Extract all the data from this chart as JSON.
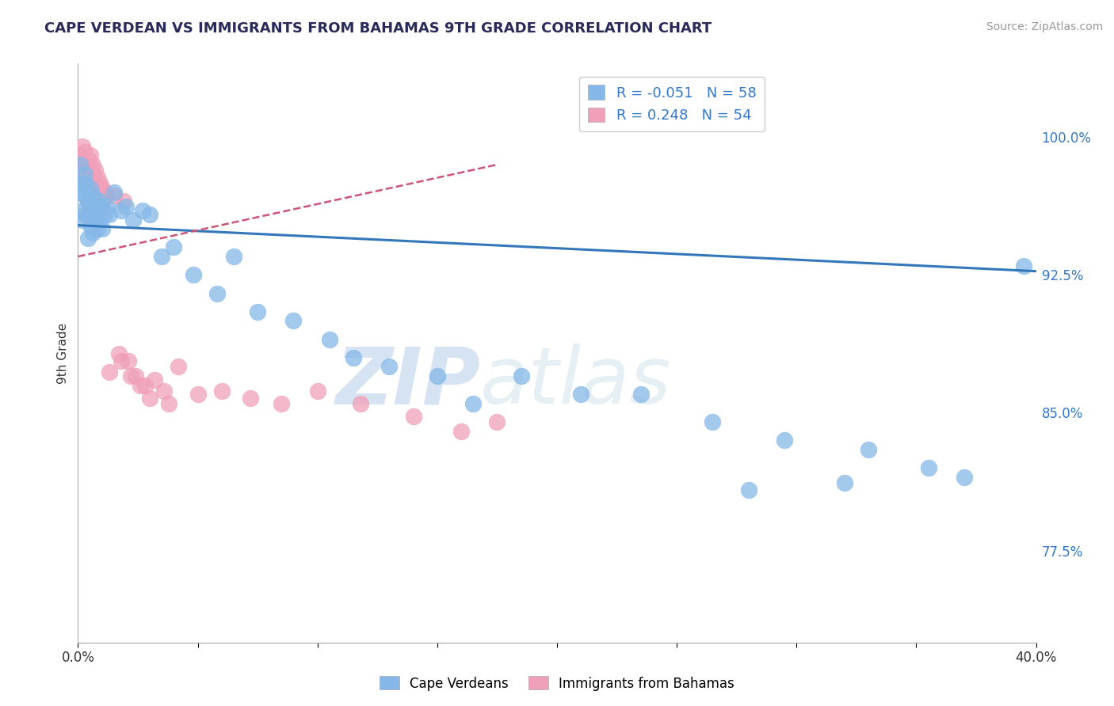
{
  "title": "CAPE VERDEAN VS IMMIGRANTS FROM BAHAMAS 9TH GRADE CORRELATION CHART",
  "source_text": "Source: ZipAtlas.com",
  "ylabel": "9th Grade",
  "xlim": [
    0.0,
    0.4
  ],
  "ylim": [
    0.725,
    1.04
  ],
  "yticks": [
    0.775,
    0.85,
    0.925,
    1.0
  ],
  "yticklabels": [
    "77.5%",
    "85.0%",
    "92.5%",
    "100.0%"
  ],
  "grid_color": "#cccccc",
  "blue_color": "#85b8e8",
  "pink_color": "#f0a0b8",
  "blue_R": -0.051,
  "blue_N": 58,
  "pink_R": 0.248,
  "pink_N": 54,
  "legend_label_blue": "Cape Verdeans",
  "legend_label_pink": "Immigrants from Bahamas",
  "watermark": "ZIPatlas",
  "watermark_color": "#c8dff5",
  "blue_line_x": [
    0.0,
    0.4
  ],
  "blue_line_y": [
    0.952,
    0.927
  ],
  "pink_line_x": [
    0.0,
    0.175
  ],
  "pink_line_y": [
    0.935,
    0.985
  ],
  "blue_scatter_x": [
    0.001,
    0.001,
    0.002,
    0.002,
    0.002,
    0.003,
    0.003,
    0.003,
    0.003,
    0.004,
    0.004,
    0.004,
    0.005,
    0.005,
    0.005,
    0.006,
    0.006,
    0.006,
    0.007,
    0.007,
    0.008,
    0.008,
    0.009,
    0.009,
    0.01,
    0.01,
    0.011,
    0.012,
    0.013,
    0.015,
    0.018,
    0.02,
    0.023,
    0.027,
    0.03,
    0.035,
    0.04,
    0.048,
    0.058,
    0.065,
    0.075,
    0.09,
    0.105,
    0.115,
    0.13,
    0.15,
    0.165,
    0.185,
    0.21,
    0.235,
    0.265,
    0.295,
    0.33,
    0.355,
    0.37,
    0.395,
    0.28,
    0.32
  ],
  "blue_scatter_y": [
    0.985,
    0.97,
    0.975,
    0.96,
    0.955,
    0.98,
    0.968,
    0.958,
    0.975,
    0.965,
    0.958,
    0.945,
    0.972,
    0.962,
    0.952,
    0.968,
    0.958,
    0.948,
    0.965,
    0.955,
    0.96,
    0.95,
    0.965,
    0.955,
    0.962,
    0.95,
    0.958,
    0.962,
    0.958,
    0.97,
    0.96,
    0.962,
    0.955,
    0.96,
    0.958,
    0.935,
    0.94,
    0.925,
    0.915,
    0.935,
    0.905,
    0.9,
    0.89,
    0.88,
    0.875,
    0.87,
    0.855,
    0.87,
    0.86,
    0.86,
    0.845,
    0.835,
    0.83,
    0.82,
    0.815,
    0.93,
    0.808,
    0.812
  ],
  "pink_scatter_x": [
    0.001,
    0.001,
    0.001,
    0.002,
    0.002,
    0.002,
    0.003,
    0.003,
    0.003,
    0.004,
    0.004,
    0.004,
    0.004,
    0.005,
    0.005,
    0.005,
    0.006,
    0.006,
    0.006,
    0.007,
    0.007,
    0.007,
    0.008,
    0.008,
    0.009,
    0.009,
    0.01,
    0.01,
    0.011,
    0.012,
    0.013,
    0.015,
    0.017,
    0.019,
    0.021,
    0.024,
    0.028,
    0.032,
    0.036,
    0.042,
    0.05,
    0.06,
    0.072,
    0.085,
    0.1,
    0.118,
    0.14,
    0.16,
    0.175,
    0.018,
    0.022,
    0.026,
    0.03,
    0.038
  ],
  "pink_scatter_y": [
    0.99,
    0.982,
    0.975,
    0.995,
    0.985,
    0.978,
    0.992,
    0.984,
    0.976,
    0.988,
    0.98,
    0.972,
    0.965,
    0.99,
    0.982,
    0.975,
    0.985,
    0.978,
    0.97,
    0.982,
    0.975,
    0.968,
    0.978,
    0.97,
    0.975,
    0.968,
    0.972,
    0.965,
    0.97,
    0.968,
    0.872,
    0.968,
    0.882,
    0.965,
    0.878,
    0.87,
    0.865,
    0.868,
    0.862,
    0.875,
    0.86,
    0.862,
    0.858,
    0.855,
    0.862,
    0.855,
    0.848,
    0.84,
    0.845,
    0.878,
    0.87,
    0.865,
    0.858,
    0.855
  ]
}
